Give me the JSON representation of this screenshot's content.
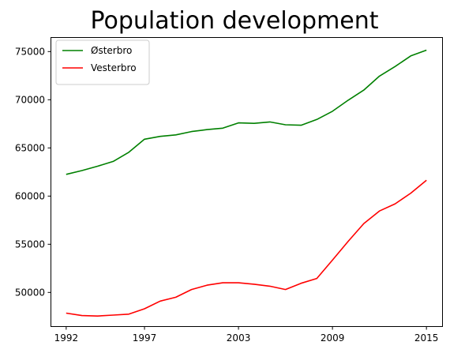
{
  "chart_data": {
    "type": "line",
    "title": "Population development",
    "xlabel": "",
    "ylabel": "",
    "x": [
      1992,
      1993,
      1994,
      1995,
      1996,
      1997,
      1998,
      1999,
      2000,
      2001,
      2002,
      2003,
      2004,
      2005,
      2006,
      2007,
      2008,
      2009,
      2010,
      2011,
      2012,
      2013,
      2014,
      2015
    ],
    "x_ticks": [
      1992,
      1997,
      2003,
      2009,
      2015
    ],
    "xlim": [
      1991.0,
      2016.0
    ],
    "y_ticks": [
      50000,
      55000,
      60000,
      65000,
      70000,
      75000
    ],
    "ylim": [
      46500,
      76500
    ],
    "grid": false,
    "legend": {
      "position": "top-left"
    },
    "series": [
      {
        "name": "Østerbro",
        "color": "#008000",
        "values": [
          62250,
          62650,
          63100,
          63600,
          64550,
          65900,
          66200,
          66350,
          66700,
          66900,
          67050,
          67600,
          67550,
          67700,
          67400,
          67350,
          67950,
          68800,
          69950,
          71000,
          72450,
          73450,
          74550,
          75150
        ]
      },
      {
        "name": "Vesterbro",
        "color": "#ff0000",
        "values": [
          47850,
          47600,
          47550,
          47650,
          47750,
          48300,
          49100,
          49500,
          50300,
          50750,
          51000,
          51000,
          50850,
          50650,
          50300,
          50950,
          51450,
          53350,
          55300,
          57150,
          58450,
          59200,
          60300,
          61650
        ]
      }
    ]
  }
}
